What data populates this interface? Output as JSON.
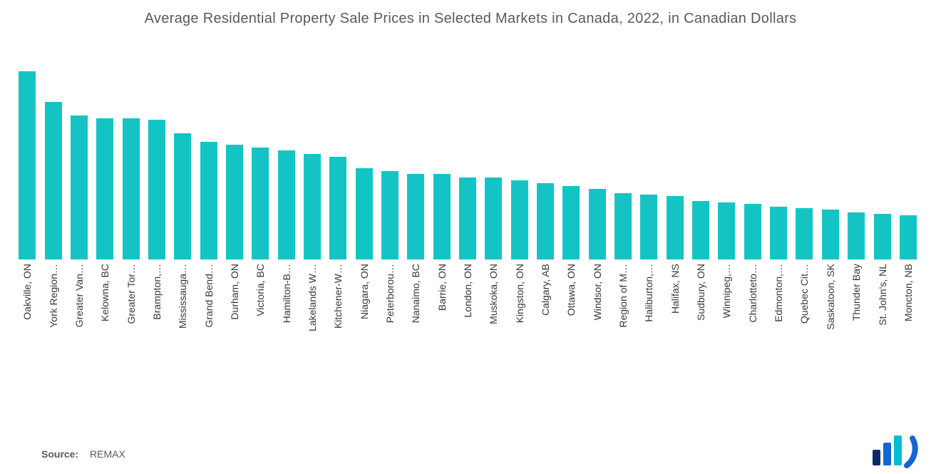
{
  "title": "Average Residential Property Sale Prices in Selected Markets in Canada, 2022, in Canadian Dollars",
  "title_fontsize": 20,
  "title_color": "#5a5a5a",
  "chart": {
    "type": "bar",
    "bar_color": "#14c4c4",
    "background_color": "#ffffff",
    "label_color": "#383838",
    "label_fontsize": 14,
    "bar_width_ratio": 0.66,
    "y_max": 130,
    "categories": [
      "Oakville, ON",
      "York Region…",
      "Greater Van…",
      "Kelowna, BC",
      "Greater Tor…",
      "Brampton,…",
      "Mississauga…",
      "Grand Bend…",
      "Durham, ON",
      "Victoria, BC",
      "Hamilton-B…",
      "Lakelands W…",
      "Kitchener-W…",
      "Niagara, ON",
      "Peterborou…",
      "Nanaimo, BC",
      "Barrie, ON",
      "London, ON",
      "Muskoka, ON",
      "Kingston, ON",
      "Calgary, AB",
      "Ottawa, ON",
      "Windsor, ON",
      "Region of M…",
      "Haliburton,…",
      "Halifax, NS",
      "Sudbury, ON",
      "Winnipeg,…",
      "Charlotteto…",
      "Edmonton,…",
      "Quebec Cit…",
      "Saskatoon, SK",
      "Thunder Bay",
      "St. John's, NL",
      "Moncton, NB"
    ],
    "values": [
      128,
      107,
      98,
      96,
      96,
      95,
      86,
      80,
      78,
      76,
      74,
      72,
      70,
      62,
      60,
      58,
      58,
      56,
      56,
      54,
      52,
      50,
      48,
      45,
      44,
      43,
      40,
      39,
      38,
      36,
      35,
      34,
      32,
      31,
      30
    ]
  },
  "source": {
    "label": "Source:",
    "value": "REMAX"
  },
  "logo": {
    "bar1_color": "#0a2a66",
    "bar2_color": "#1464d2",
    "bar3_color": "#00bcd4",
    "arc_color": "#1464d2"
  }
}
